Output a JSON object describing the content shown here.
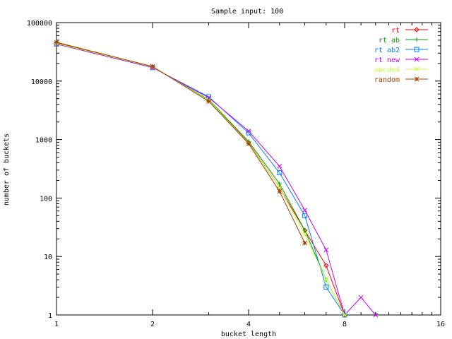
{
  "chart_data": {
    "type": "line",
    "title": "Sample input: 100",
    "xlabel": "bucket length",
    "ylabel": "number of buckets",
    "x_scale": "log2",
    "y_scale": "log10",
    "xlim": [
      1,
      16
    ],
    "ylim": [
      1,
      100000
    ],
    "x_ticks": [
      1,
      2,
      4,
      8,
      16
    ],
    "x_tick_labels": [
      "1",
      "2",
      "4",
      "8",
      "16"
    ],
    "y_ticks": [
      1,
      10,
      100,
      1000,
      10000,
      100000
    ],
    "y_tick_labels": [
      "1",
      "10",
      "100",
      "1000",
      "10000",
      "100000"
    ],
    "grid": false,
    "legend_position": "top-right",
    "series": [
      {
        "name": "rt",
        "color": "#ff0000",
        "marker": "diamond",
        "x": [
          1,
          2,
          3,
          4,
          5,
          6,
          7,
          8
        ],
        "y": [
          45000,
          17500,
          4700,
          880,
          150,
          28,
          7,
          1
        ]
      },
      {
        "name": "rt ab",
        "color": "#00a000",
        "marker": "plus",
        "x": [
          1,
          2,
          3,
          4,
          5,
          6,
          7,
          8
        ],
        "y": [
          44000,
          17500,
          4800,
          930,
          175,
          28,
          4,
          1
        ]
      },
      {
        "name": "rt ab2",
        "color": "#0080ff",
        "marker": "square",
        "x": [
          1,
          2,
          3,
          4,
          5,
          6,
          7,
          8
        ],
        "y": [
          43000,
          17000,
          5400,
          1300,
          270,
          50,
          3,
          1
        ]
      },
      {
        "name": "rt new",
        "color": "#c000ff",
        "marker": "cross",
        "x": [
          1,
          2,
          3,
          4,
          5,
          6,
          7,
          8,
          9,
          10
        ],
        "y": [
          43000,
          17000,
          5200,
          1400,
          350,
          62,
          13,
          1,
          2,
          1
        ]
      },
      {
        "name": "abcde4",
        "color": "#c0ff40",
        "marker": "x",
        "x": [
          1,
          2,
          3,
          4,
          5,
          6,
          7,
          8
        ],
        "y": [
          44000,
          17500,
          4700,
          860,
          150,
          24,
          4,
          1
        ]
      },
      {
        "name": "random",
        "color": "#a04000",
        "marker": "star",
        "x": [
          1,
          2,
          3,
          4,
          5,
          6
        ],
        "y": [
          46000,
          17800,
          4500,
          850,
          130,
          17
        ]
      }
    ]
  }
}
